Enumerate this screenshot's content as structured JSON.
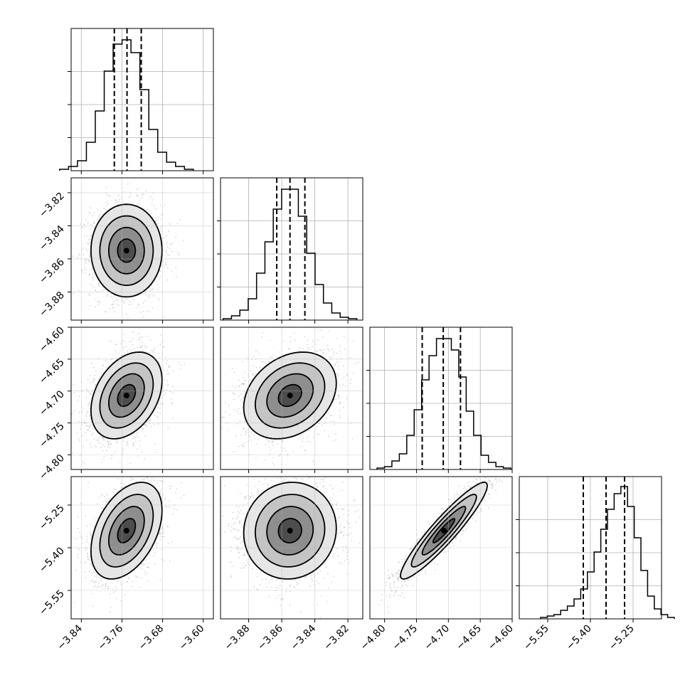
{
  "chart_data": {
    "type": "corner",
    "grid": true,
    "params": [
      {
        "range": [
          -3.86,
          -3.58
        ],
        "ticks": [
          -3.84,
          -3.76,
          -3.68,
          -3.6
        ],
        "tick_labels": [
          "−3.84",
          "−3.76",
          "−3.68",
          "−3.60"
        ],
        "quantiles": [
          -3.775,
          -3.75,
          -3.722
        ],
        "hist": [
          1,
          3,
          7,
          20,
          42,
          70,
          89,
          92,
          83,
          57,
          29,
          13,
          6,
          3,
          1
        ],
        "mode": -3.751
      },
      {
        "range": [
          -3.897,
          -3.811
        ],
        "ticks": [
          -3.88,
          -3.86,
          -3.84,
          -3.82
        ],
        "tick_labels": [
          "−3.88",
          "−3.86",
          "−3.84",
          "−3.82"
        ],
        "quantiles": [
          -3.863,
          -3.855,
          -3.846
        ],
        "hist": [
          1,
          3,
          7,
          15,
          33,
          55,
          78,
          92,
          92,
          73,
          47,
          25,
          12,
          5,
          2,
          1
        ],
        "mode": -3.855
      },
      {
        "range": [
          -4.823,
          -4.6
        ],
        "ticks": [
          -4.8,
          -4.75,
          -4.7,
          -4.65,
          -4.6
        ],
        "tick_labels": [
          "−4.80",
          "−4.75",
          "−4.70",
          "−4.65",
          "−4.60"
        ],
        "quantiles": [
          -4.741,
          -4.708,
          -4.681
        ],
        "hist": [
          1,
          2,
          6,
          11,
          24,
          42,
          63,
          80,
          92,
          92,
          84,
          65,
          41,
          24,
          10,
          5,
          2,
          1
        ],
        "mode": -4.707
      },
      {
        "range": [
          -5.65,
          -5.15
        ],
        "ticks": [
          -5.55,
          -5.4,
          -5.25
        ],
        "tick_labels": [
          "−5.55",
          "−5.40",
          "−5.25"
        ],
        "quantiles": [
          -5.425,
          -5.345,
          -5.28
        ],
        "hist": [
          1,
          2,
          3,
          6,
          9,
          14,
          21,
          33,
          47,
          63,
          77,
          88,
          93,
          79,
          57,
          34,
          16,
          7,
          3,
          1
        ],
        "mode": -5.34
      }
    ],
    "pairs": [
      {
        "x": 0,
        "y": 1,
        "sigma_x": 0.035,
        "sigma_y": 0.014,
        "rho": 0.0
      },
      {
        "x": 0,
        "y": 2,
        "sigma_x": 0.035,
        "sigma_y": 0.034,
        "rho": 0.35
      },
      {
        "x": 1,
        "y": 2,
        "sigma_x": 0.014,
        "sigma_y": 0.034,
        "rho": 0.28
      },
      {
        "x": 0,
        "y": 3,
        "sigma_x": 0.035,
        "sigma_y": 0.085,
        "rho": 0.42
      },
      {
        "x": 1,
        "y": 3,
        "sigma_x": 0.014,
        "sigma_y": 0.085,
        "rho": 0.05
      },
      {
        "x": 2,
        "y": 3,
        "sigma_x": 0.034,
        "sigma_y": 0.085,
        "rho": 0.93
      }
    ],
    "colors": {
      "line": "#000000",
      "grid": "#b0b0b0",
      "scatter": "#8c8c8c"
    }
  }
}
